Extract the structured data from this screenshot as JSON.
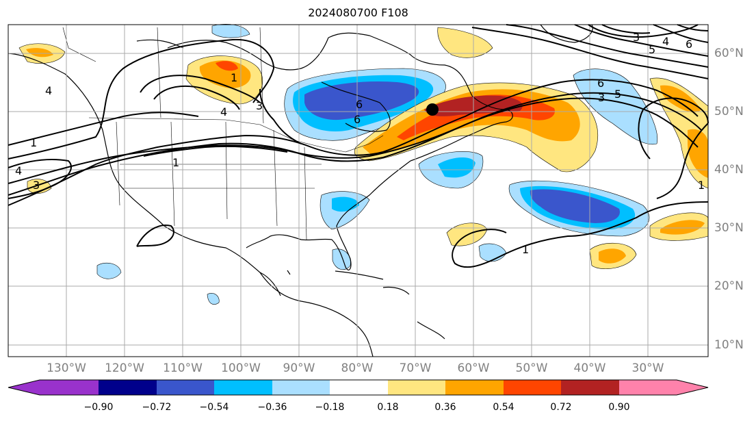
{
  "title": "2024080700 F108",
  "map": {
    "lon_labels": [
      "130°W",
      "120°W",
      "110°W",
      "100°W",
      "90°W",
      "80°W",
      "70°W",
      "60°W",
      "50°W",
      "40°W",
      "30°W"
    ],
    "lat_labels": [
      "60°N",
      "50°N",
      "40°N",
      "30°N",
      "20°N",
      "10°N"
    ],
    "contour_labels": [
      "1",
      "3",
      "4",
      "6",
      "1",
      "4",
      "1",
      "3",
      "1",
      "3",
      "4",
      "5",
      "6",
      "3",
      "5",
      "6",
      "1",
      "4",
      "6"
    ],
    "low_center_marker": "black-dot"
  },
  "colorbar": {
    "ticks": [
      "−0.90",
      "−0.72",
      "−0.54",
      "−0.36",
      "−0.18",
      "0.18",
      "0.36",
      "0.54",
      "0.72",
      "0.90"
    ],
    "colors": [
      "#9932cc",
      "#00008b",
      "#3a56cc",
      "#00bfff",
      "#aadfff",
      "#ffffff",
      "#ffe680",
      "#ffa500",
      "#ff4500",
      "#b22222",
      "#ff82ab"
    ]
  }
}
